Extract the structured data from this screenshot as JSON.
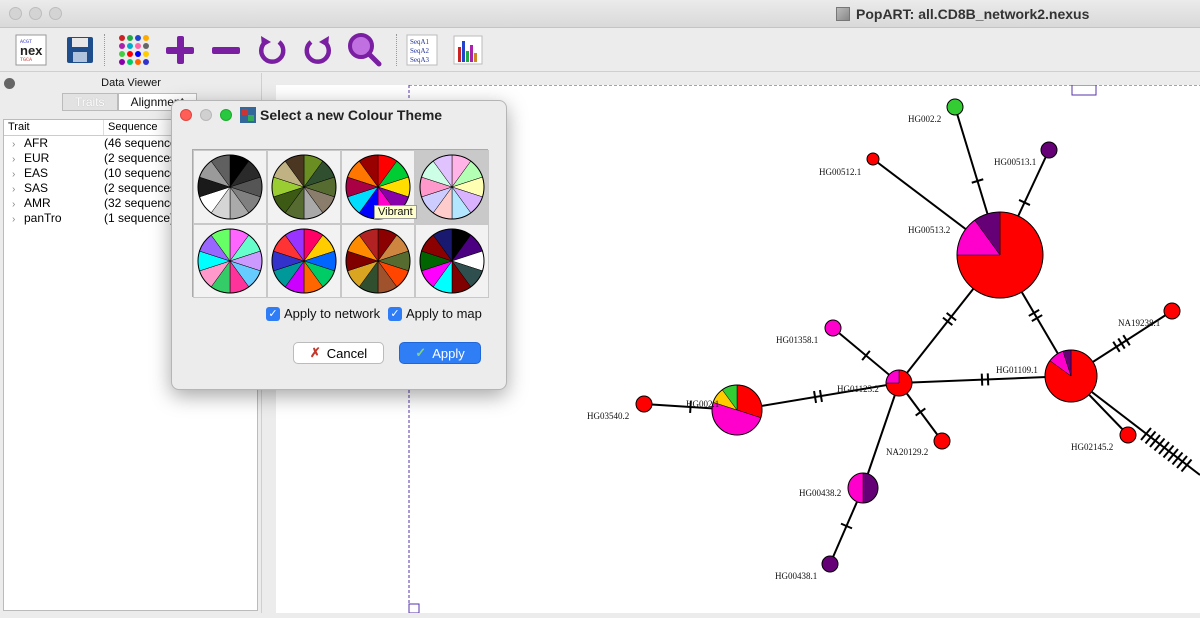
{
  "window": {
    "title": "PopART: all.CD8B_network2.nexus"
  },
  "toolbar": {
    "icons": [
      "nexus-file-icon",
      "save-icon",
      "colour-theme-icon",
      "zoom-in-icon",
      "zoom-out-icon",
      "rotate-left-icon",
      "rotate-right-icon",
      "search-icon",
      "alignment-icon",
      "chart-icon"
    ],
    "nex_label": "nex",
    "seq_labels": [
      "SeqA1",
      "SeqA2",
      "SeqA3"
    ]
  },
  "data_viewer": {
    "title": "Data Viewer",
    "tabs": [
      "Traits",
      "Alignment"
    ],
    "columns": [
      "Trait",
      "Sequence"
    ],
    "rows": [
      {
        "trait": "AFR",
        "sequence": "(46 sequences)"
      },
      {
        "trait": "EUR",
        "sequence": "(2 sequences)"
      },
      {
        "trait": "EAS",
        "sequence": "(10 sequences)"
      },
      {
        "trait": "SAS",
        "sequence": "(2 sequences)"
      },
      {
        "trait": "AMR",
        "sequence": "(32 sequences)"
      },
      {
        "trait": "panTro",
        "sequence": "(1 sequence)"
      }
    ]
  },
  "dialog": {
    "title": "Select a new Colour Theme",
    "tooltip": "Vibrant",
    "apply_network_label": "Apply to network",
    "apply_map_label": "Apply to map",
    "apply_network_checked": true,
    "apply_map_checked": true,
    "cancel_label": "Cancel",
    "apply_label": "Apply",
    "themes": [
      {
        "colors": [
          "#000000",
          "#2a2a2a",
          "#555555",
          "#808080",
          "#aaaaaa",
          "#d5d5d5",
          "#ffffff",
          "#1a1a1a",
          "#9a9a9a",
          "#606060"
        ]
      },
      {
        "colors": [
          "#6b8e23",
          "#2f4f2f",
          "#556b2f",
          "#8b7d6b",
          "#a9a9a9",
          "#556b2f",
          "#3c5a14",
          "#9acd32",
          "#c0b283",
          "#4b3621"
        ]
      },
      {
        "colors": [
          "#ff0000",
          "#00cc33",
          "#ffdd00",
          "#8800aa",
          "#ff00cc",
          "#0000ff",
          "#00ddff",
          "#aa0044",
          "#ff7700",
          "#990000"
        ]
      },
      {
        "colors": [
          "#ffb3e6",
          "#b3ffb3",
          "#ffffb3",
          "#d9b3ff",
          "#b3e6ff",
          "#ffcccc",
          "#ccccff",
          "#ff99cc",
          "#ccffe6",
          "#e0c2ff"
        ]
      },
      {
        "colors": [
          "#ff66ff",
          "#66ffcc",
          "#cc99ff",
          "#66ccff",
          "#ff3399",
          "#33cc66",
          "#ff99cc",
          "#00ffff",
          "#9966ff",
          "#66ff66"
        ]
      },
      {
        "colors": [
          "#ff0066",
          "#ffcc00",
          "#0066ff",
          "#00cc66",
          "#ff6600",
          "#cc00ff",
          "#009999",
          "#3333cc",
          "#ff3333",
          "#9933ff"
        ]
      },
      {
        "colors": [
          "#8b0000",
          "#cd853f",
          "#556b2f",
          "#ff4500",
          "#a0522d",
          "#2f4f2f",
          "#daa520",
          "#800000",
          "#ff8c00",
          "#b22222"
        ]
      },
      {
        "colors": [
          "#000000",
          "#4b0082",
          "#ffffff",
          "#2f4f4f",
          "#800000",
          "#00ffff",
          "#ff00ff",
          "#006400",
          "#8b0000",
          "#191970"
        ]
      }
    ]
  },
  "network": {
    "colors": {
      "AFR": "#ff0000",
      "EUR": "#33cc33",
      "EAS": "#ff00cc",
      "SAS": "#660077",
      "AMR": "#ffcc00"
    },
    "labels": [
      "HG002.2",
      "HG00513.1",
      "HG00512.1",
      "HG00513.2",
      "NA19238.1",
      "HG01358.1",
      "HG01109.1",
      "HG01123.2",
      "HG03540.2",
      "HG002.1",
      "NA20129.2",
      "HG02145.2",
      "HG00438.2",
      "HG00438.1"
    ]
  }
}
